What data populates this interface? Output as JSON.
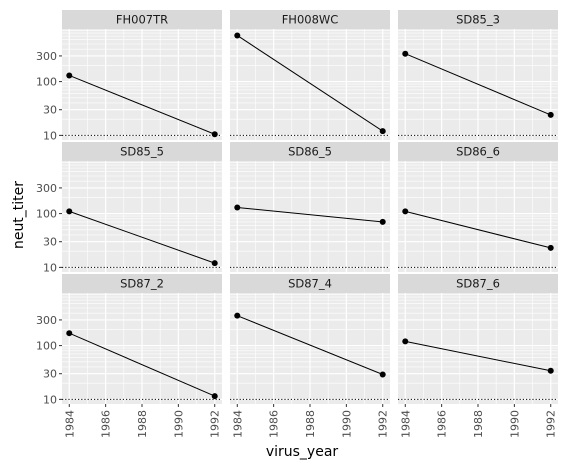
{
  "chart_data": {
    "type": "line",
    "xlabel": "virus_year",
    "ylabel": "neut_titer",
    "x_scale": "linear",
    "y_scale": "log10",
    "xlim": [
      1983.6,
      1992.4
    ],
    "ylim": [
      8.2,
      950
    ],
    "x_ticks": [
      1984,
      1986,
      1988,
      1990,
      1992
    ],
    "y_ticks": [
      10,
      30,
      100,
      300
    ],
    "detection_limit": 10,
    "grid": true,
    "facets": [
      {
        "name": "FH007TR",
        "x": [
          1984,
          1992
        ],
        "y": [
          130,
          10.5
        ]
      },
      {
        "name": "FH008WC",
        "x": [
          1984,
          1992
        ],
        "y": [
          720,
          12
        ]
      },
      {
        "name": "SD85_3",
        "x": [
          1984,
          1992
        ],
        "y": [
          330,
          24
        ]
      },
      {
        "name": "SD85_5",
        "x": [
          1984,
          1992
        ],
        "y": [
          110,
          12
        ]
      },
      {
        "name": "SD86_5",
        "x": [
          1984,
          1992
        ],
        "y": [
          130,
          70
        ]
      },
      {
        "name": "SD86_6",
        "x": [
          1984,
          1992
        ],
        "y": [
          110,
          23
        ]
      },
      {
        "name": "SD87_2",
        "x": [
          1984,
          1992
        ],
        "y": [
          170,
          11.5
        ]
      },
      {
        "name": "SD87_4",
        "x": [
          1984,
          1992
        ],
        "y": [
          360,
          29
        ]
      },
      {
        "name": "SD87_6",
        "x": [
          1984,
          1992
        ],
        "y": [
          120,
          34
        ]
      }
    ]
  },
  "colors": {
    "panel_bg": "#ebebeb",
    "strip_bg": "#d9d9d9",
    "grid": "#ffffff",
    "line": "#000000",
    "point": "#000000"
  }
}
